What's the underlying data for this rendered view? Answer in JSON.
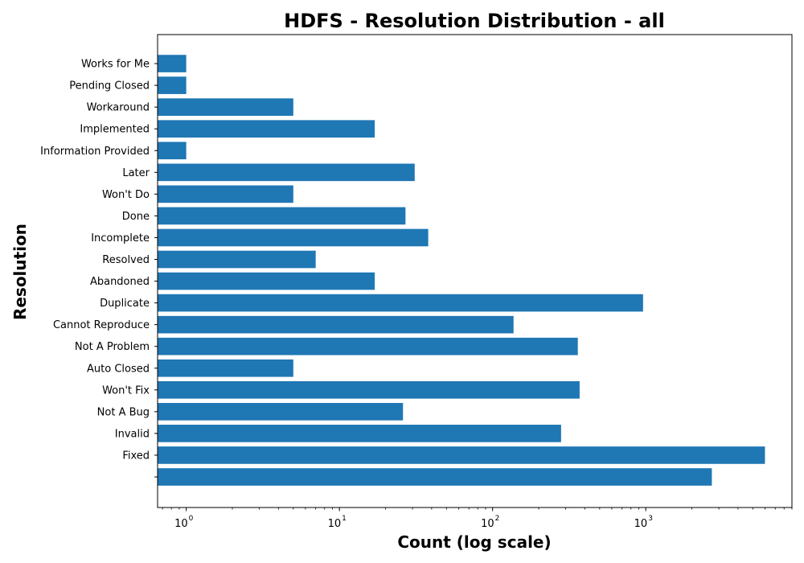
{
  "chart_data": {
    "type": "bar",
    "orientation": "horizontal",
    "title": "HDFS - Resolution Distribution - all",
    "xlabel": "Count (log scale)",
    "ylabel": "Resolution",
    "x_scale": "log",
    "xlim": [
      0.65,
      9000
    ],
    "x_ticks": [
      {
        "base": "10",
        "exp": "0",
        "value": 1
      },
      {
        "base": "10",
        "exp": "1",
        "value": 10
      },
      {
        "base": "10",
        "exp": "2",
        "value": 100
      },
      {
        "base": "10",
        "exp": "3",
        "value": 1000
      }
    ],
    "grid": false,
    "legend": "none",
    "bar_color": "#1f77b4",
    "categories": [
      "",
      "Fixed",
      "Invalid",
      "Not A Bug",
      "Won't Fix",
      "Auto Closed",
      "Not A Problem",
      "Cannot Reproduce",
      "Duplicate",
      "Abandoned",
      "Resolved",
      "Incomplete",
      "Done",
      "Won't Do",
      "Later",
      "Information Provided",
      "Implemented",
      "Workaround",
      "Pending Closed",
      "Works for Me"
    ],
    "values": [
      2700,
      6000,
      280,
      26,
      370,
      5,
      360,
      137,
      960,
      17,
      7,
      38,
      27,
      5,
      31,
      1,
      17,
      5,
      1,
      1
    ]
  }
}
